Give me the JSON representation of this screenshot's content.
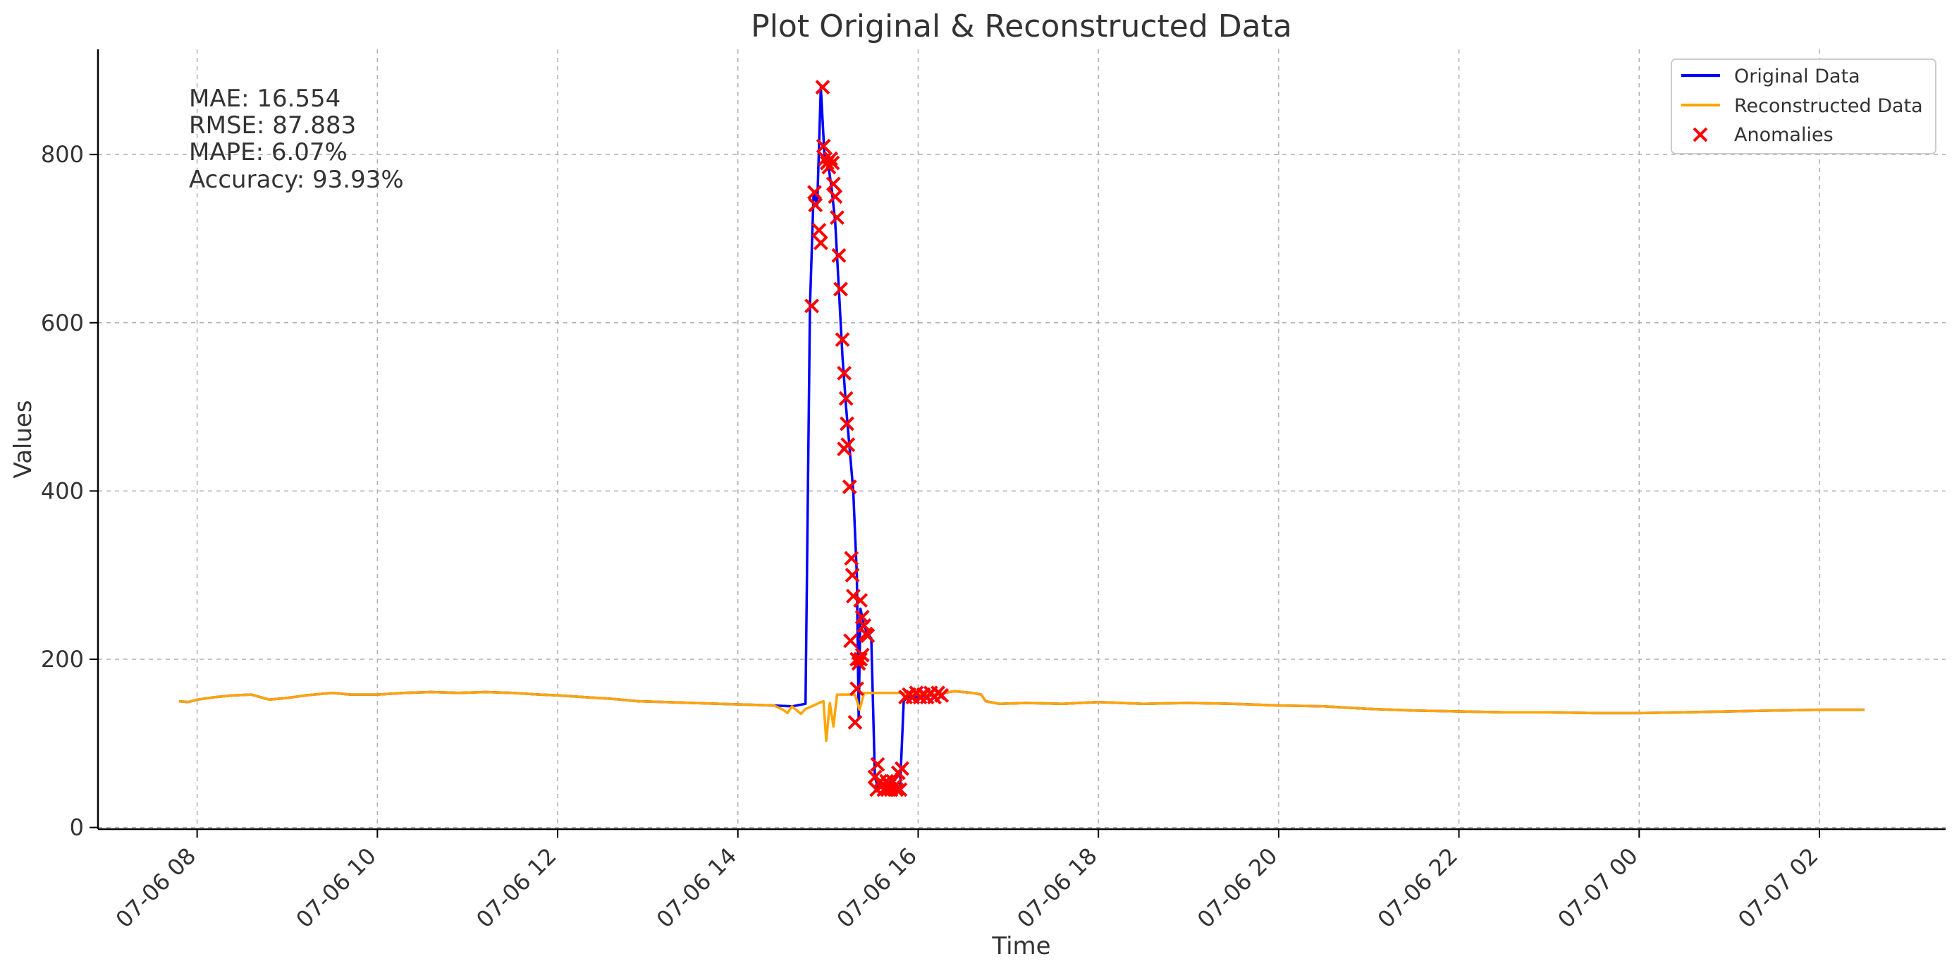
{
  "chart_data": {
    "type": "line",
    "title": "Plot Original & Reconstructed Data",
    "xlabel": "Time",
    "ylabel": "Values",
    "x_unit": "hours, 2024-07-06 00:00 = 0 (tick labels show MM-DD HH)",
    "xlim": [
      6.9,
      27.4
    ],
    "ylim": [
      -2,
      925
    ],
    "grid": true,
    "legend_position": "top-right",
    "x_ticks": [
      {
        "x": 8,
        "label": "07-06 08"
      },
      {
        "x": 10,
        "label": "07-06 10"
      },
      {
        "x": 12,
        "label": "07-06 12"
      },
      {
        "x": 14,
        "label": "07-06 14"
      },
      {
        "x": 16,
        "label": "07-06 16"
      },
      {
        "x": 18,
        "label": "07-06 18"
      },
      {
        "x": 20,
        "label": "07-06 20"
      },
      {
        "x": 22,
        "label": "07-06 22"
      },
      {
        "x": 24,
        "label": "07-07 00"
      },
      {
        "x": 26,
        "label": "07-07 02"
      }
    ],
    "y_ticks": [
      {
        "y": 0,
        "label": "0"
      },
      {
        "y": 200,
        "label": "200"
      },
      {
        "y": 400,
        "label": "400"
      },
      {
        "y": 600,
        "label": "600"
      },
      {
        "y": 800,
        "label": "800"
      }
    ],
    "metrics": [
      "MAE: 16.554",
      "RMSE: 87.883",
      "MAPE: 6.07%",
      "Accuracy: 93.93%"
    ],
    "series": [
      {
        "name": "Original Data",
        "color": "#0000ff",
        "x": [
          7.8,
          7.9,
          8.0,
          8.2,
          8.4,
          8.6,
          8.7,
          8.8,
          9.0,
          9.2,
          9.5,
          9.7,
          10.0,
          10.3,
          10.6,
          10.9,
          11.2,
          11.5,
          11.8,
          12.0,
          12.3,
          12.6,
          12.9,
          13.2,
          13.5,
          13.8,
          14.1,
          14.4,
          14.6,
          14.75,
          14.8,
          14.84,
          14.88,
          14.92,
          14.96,
          15.0,
          15.04,
          15.08,
          15.12,
          15.16,
          15.2,
          15.24,
          15.28,
          15.32,
          15.34,
          15.36,
          15.4,
          15.44,
          15.48,
          15.52,
          15.56,
          15.6,
          15.65,
          15.7,
          15.75,
          15.8,
          15.84,
          15.88,
          16.0,
          16.2,
          16.4,
          16.6,
          16.7,
          16.75,
          16.9,
          17.2,
          17.6,
          18.0,
          18.5,
          19.0,
          19.5,
          20.0,
          20.5,
          21.0,
          21.5,
          22.0,
          22.5,
          23.0,
          23.5,
          24.0,
          24.5,
          25.0,
          25.5,
          26.0,
          26.5
        ],
        "values": [
          150,
          149,
          152,
          155,
          157,
          158,
          155,
          152,
          154,
          157,
          160,
          158,
          158,
          160,
          161,
          160,
          161,
          160,
          158,
          157,
          155,
          153,
          150,
          149,
          148,
          147,
          146,
          145,
          144,
          147,
          620,
          755,
          740,
          880,
          800,
          790,
          760,
          720,
          640,
          560,
          500,
          450,
          400,
          300,
          130,
          260,
          240,
          230,
          225,
          60,
          45,
          50,
          50,
          55,
          45,
          50,
          150,
          155,
          155,
          158,
          162,
          160,
          158,
          150,
          147,
          148,
          147,
          149,
          147,
          148,
          147,
          145,
          144,
          141,
          139,
          138,
          137,
          137,
          136,
          136,
          137,
          138,
          139,
          140,
          140
        ]
      },
      {
        "name": "Reconstructed Data",
        "color": "#ffa500",
        "x": [
          7.8,
          7.9,
          8.0,
          8.2,
          8.4,
          8.6,
          8.7,
          8.8,
          9.0,
          9.2,
          9.5,
          9.7,
          10.0,
          10.3,
          10.6,
          10.9,
          11.2,
          11.5,
          11.8,
          12.0,
          12.3,
          12.6,
          12.9,
          13.2,
          13.5,
          13.8,
          14.1,
          14.4,
          14.5,
          14.55,
          14.6,
          14.7,
          14.75,
          14.8,
          14.9,
          14.95,
          14.98,
          15.02,
          15.06,
          15.1,
          15.2,
          15.3,
          15.35,
          15.4,
          15.6,
          15.8,
          16.0,
          16.2,
          16.4,
          16.6,
          16.7,
          16.75,
          16.9,
          17.2,
          17.6,
          18.0,
          18.5,
          19.0,
          19.5,
          20.0,
          20.5,
          21.0,
          21.5,
          22.0,
          22.5,
          23.0,
          23.5,
          24.0,
          24.5,
          25.0,
          25.5,
          26.0,
          26.5
        ],
        "values": [
          150,
          149,
          152,
          155,
          157,
          158,
          155,
          152,
          154,
          157,
          160,
          158,
          158,
          160,
          161,
          160,
          161,
          160,
          158,
          157,
          155,
          153,
          150,
          149,
          148,
          147,
          146,
          145,
          140,
          136,
          144,
          135,
          141,
          143,
          148,
          150,
          103,
          148,
          120,
          158,
          158,
          158,
          140,
          160,
          160,
          160,
          160,
          158,
          162,
          160,
          158,
          150,
          147,
          148,
          147,
          149,
          147,
          148,
          147,
          145,
          144,
          141,
          139,
          138,
          137,
          137,
          136,
          136,
          137,
          138,
          139,
          140,
          140
        ]
      }
    ],
    "anomalies": {
      "name": "Anomalies",
      "color": "#ff0000",
      "points": [
        [
          14.82,
          620
        ],
        [
          14.85,
          755
        ],
        [
          14.86,
          740
        ],
        [
          14.9,
          710
        ],
        [
          14.92,
          695
        ],
        [
          14.94,
          880
        ],
        [
          14.95,
          810
        ],
        [
          14.97,
          795
        ],
        [
          14.99,
          790
        ],
        [
          15.01,
          785
        ],
        [
          15.03,
          795
        ],
        [
          15.05,
          790
        ],
        [
          15.06,
          765
        ],
        [
          15.08,
          750
        ],
        [
          15.1,
          725
        ],
        [
          15.12,
          680
        ],
        [
          15.14,
          640
        ],
        [
          15.16,
          580
        ],
        [
          15.18,
          540
        ],
        [
          15.2,
          510
        ],
        [
          15.21,
          480
        ],
        [
          15.22,
          455
        ],
        [
          15.18,
          450
        ],
        [
          15.24,
          405
        ],
        [
          15.26,
          320
        ],
        [
          15.27,
          300
        ],
        [
          15.28,
          275
        ],
        [
          15.25,
          222
        ],
        [
          15.3,
          125
        ],
        [
          15.32,
          200
        ],
        [
          15.34,
          195
        ],
        [
          15.36,
          270
        ],
        [
          15.38,
          250
        ],
        [
          15.4,
          240
        ],
        [
          15.42,
          230
        ],
        [
          15.44,
          228
        ],
        [
          15.36,
          200
        ],
        [
          15.38,
          205
        ],
        [
          15.32,
          165
        ],
        [
          15.52,
          60
        ],
        [
          15.55,
          75
        ],
        [
          15.58,
          55
        ],
        [
          15.6,
          50
        ],
        [
          15.62,
          45
        ],
        [
          15.65,
          55
        ],
        [
          15.68,
          50
        ],
        [
          15.7,
          45
        ],
        [
          15.72,
          55
        ],
        [
          15.75,
          50
        ],
        [
          15.78,
          65
        ],
        [
          15.8,
          45
        ],
        [
          15.82,
          70
        ],
        [
          15.54,
          45
        ],
        [
          15.66,
          45
        ],
        [
          15.76,
          45
        ],
        [
          15.86,
          155
        ],
        [
          15.9,
          158
        ],
        [
          15.94,
          155
        ],
        [
          15.98,
          160
        ],
        [
          16.02,
          155
        ],
        [
          16.06,
          158
        ],
        [
          16.1,
          155
        ],
        [
          16.14,
          160
        ],
        [
          16.18,
          155
        ],
        [
          16.22,
          160
        ],
        [
          16.26,
          157
        ]
      ]
    }
  }
}
